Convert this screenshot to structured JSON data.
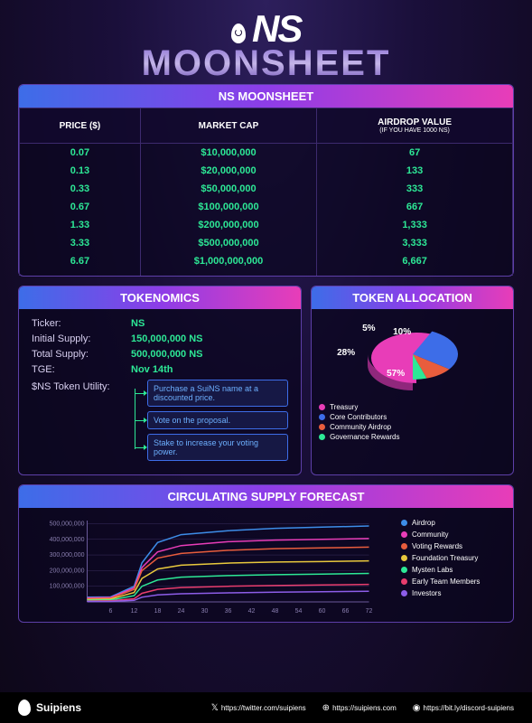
{
  "header": {
    "logo_text": "NS",
    "title": "MOONSHEET"
  },
  "moonsheet": {
    "panel_title": "NS MOONSHEET",
    "columns": [
      {
        "label": "PRICE ($)",
        "sub": ""
      },
      {
        "label": "MARKET CAP",
        "sub": ""
      },
      {
        "label": "AIRDROP VALUE",
        "sub": "(IF YOU HAVE 1000 NS)"
      }
    ],
    "rows": [
      [
        "0.07",
        "$10,000,000",
        "67"
      ],
      [
        "0.13",
        "$20,000,000",
        "133"
      ],
      [
        "0.33",
        "$50,000,000",
        "333"
      ],
      [
        "0.67",
        "$100,000,000",
        "667"
      ],
      [
        "1.33",
        "$200,000,000",
        "1,333"
      ],
      [
        "3.33",
        "$500,000,000",
        "3,333"
      ],
      [
        "6.67",
        "$1,000,000,000",
        "6,667"
      ]
    ],
    "value_color": "#2de896",
    "border_color": "#3d2a6e"
  },
  "tokenomics": {
    "panel_title": "TOKENOMICS",
    "rows": [
      {
        "label": "Ticker:",
        "value": "NS"
      },
      {
        "label": "Initial Supply:",
        "value": "150,000,000 NS"
      },
      {
        "label": "Total Supply:",
        "value": "500,000,000 NS"
      },
      {
        "label": "TGE:",
        "value": "Nov 14th"
      }
    ],
    "utility_label": "$NS Token Utility:",
    "utility_boxes": [
      "Purchase a SuiNS name at a discounted price.",
      "Vote on the proposal.",
      "Stake to increase your voting power."
    ],
    "value_color": "#2de896",
    "box_border": "#3d6de8",
    "box_text": "#6db0ff"
  },
  "allocation": {
    "panel_title": "TOKEN ALLOCATION",
    "type": "pie",
    "slices": [
      {
        "label": "Treasury",
        "value": 57,
        "color": "#e83db8",
        "display": "57%"
      },
      {
        "label": "Core Contributors",
        "value": 28,
        "color": "#3d6de8",
        "display": "28%"
      },
      {
        "label": "Community Airdrop",
        "value": 10,
        "color": "#e85d3d",
        "display": "10%"
      },
      {
        "label": "Governance Rewards",
        "value": 5,
        "color": "#2de896",
        "display": "5%"
      }
    ]
  },
  "forecast": {
    "panel_title": "CIRCULATING SUPPLY FORECAST",
    "type": "line",
    "x_ticks": [
      6,
      12,
      18,
      24,
      30,
      36,
      42,
      48,
      54,
      60,
      66,
      72
    ],
    "y_ticks": [
      100000000,
      200000000,
      300000000,
      400000000,
      500000000
    ],
    "y_tick_labels": [
      "100,000,000",
      "200,000,000",
      "300,000,000",
      "400,000,000",
      "500,000,000"
    ],
    "ylim": [
      0,
      520000000
    ],
    "xlim": [
      0,
      72
    ],
    "grid_color": "#3a2d5e",
    "background": "rgba(10,5,30,0.7)",
    "series": [
      {
        "name": "Airdrop",
        "color": "#3d8de8",
        "points": [
          [
            0,
            30
          ],
          [
            6,
            32
          ],
          [
            12,
            100
          ],
          [
            14,
            250
          ],
          [
            18,
            380
          ],
          [
            24,
            430
          ],
          [
            36,
            455
          ],
          [
            48,
            470
          ],
          [
            60,
            478
          ],
          [
            72,
            485
          ]
        ]
      },
      {
        "name": "Community",
        "color": "#e83db8",
        "points": [
          [
            0,
            25
          ],
          [
            6,
            28
          ],
          [
            12,
            90
          ],
          [
            14,
            220
          ],
          [
            18,
            320
          ],
          [
            24,
            360
          ],
          [
            36,
            385
          ],
          [
            48,
            395
          ],
          [
            60,
            400
          ],
          [
            72,
            405
          ]
        ]
      },
      {
        "name": "Voting Rewards",
        "color": "#e85d3d",
        "points": [
          [
            0,
            20
          ],
          [
            6,
            23
          ],
          [
            12,
            80
          ],
          [
            14,
            200
          ],
          [
            18,
            280
          ],
          [
            24,
            310
          ],
          [
            36,
            330
          ],
          [
            48,
            340
          ],
          [
            60,
            345
          ],
          [
            72,
            350
          ]
        ]
      },
      {
        "name": "Foundation Treasury",
        "color": "#e8c83d",
        "points": [
          [
            0,
            15
          ],
          [
            6,
            18
          ],
          [
            12,
            60
          ],
          [
            14,
            150
          ],
          [
            18,
            210
          ],
          [
            24,
            235
          ],
          [
            36,
            248
          ],
          [
            48,
            255
          ],
          [
            60,
            258
          ],
          [
            72,
            262
          ]
        ]
      },
      {
        "name": "Mysten Labs",
        "color": "#2de896",
        "points": [
          [
            0,
            10
          ],
          [
            6,
            12
          ],
          [
            12,
            40
          ],
          [
            14,
            100
          ],
          [
            18,
            140
          ],
          [
            24,
            158
          ],
          [
            36,
            168
          ],
          [
            48,
            174
          ],
          [
            60,
            178
          ],
          [
            72,
            182
          ]
        ]
      },
      {
        "name": "Early Team Members",
        "color": "#e83d6d",
        "points": [
          [
            0,
            5
          ],
          [
            6,
            7
          ],
          [
            12,
            20
          ],
          [
            14,
            55
          ],
          [
            18,
            80
          ],
          [
            24,
            92
          ],
          [
            36,
            100
          ],
          [
            48,
            105
          ],
          [
            60,
            108
          ],
          [
            72,
            112
          ]
        ]
      },
      {
        "name": "Investors",
        "color": "#8d5de8",
        "points": [
          [
            0,
            2
          ],
          [
            6,
            3
          ],
          [
            12,
            10
          ],
          [
            14,
            30
          ],
          [
            18,
            45
          ],
          [
            24,
            52
          ],
          [
            36,
            58
          ],
          [
            48,
            62
          ],
          [
            60,
            65
          ],
          [
            72,
            68
          ]
        ]
      }
    ]
  },
  "footer": {
    "brand": "Suipiens",
    "links": [
      {
        "icon": "x-icon",
        "text": "https://twitter.com/suipiens"
      },
      {
        "icon": "globe-icon",
        "text": "https://suipiens.com"
      },
      {
        "icon": "discord-icon",
        "text": "https://bit.ly/discord-suipiens"
      }
    ]
  }
}
